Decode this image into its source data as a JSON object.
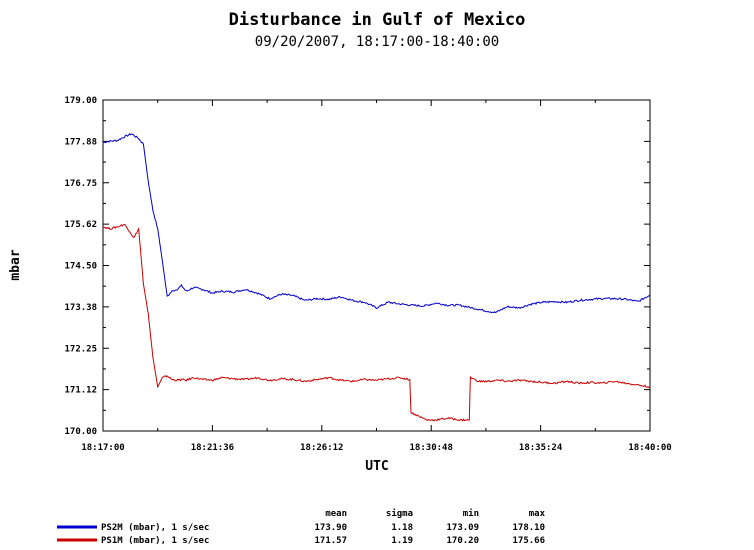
{
  "chart_data": {
    "type": "line",
    "title": "Disturbance in Gulf of Mexico",
    "subtitle": "09/20/2007, 18:17:00-18:40:00",
    "xlabel": "UTC",
    "ylabel": "mbar",
    "x_tick_labels": [
      "18:17:00",
      "18:21:36",
      "18:26:12",
      "18:30:48",
      "18:35:24",
      "18:40:00"
    ],
    "x_range_minutes": [
      0,
      23
    ],
    "y_ticks": [
      "179.00",
      "177.88",
      "176.75",
      "175.62",
      "174.50",
      "173.38",
      "172.25",
      "171.12",
      "170.00"
    ],
    "ylim": [
      170.0,
      179.0
    ],
    "grid": false,
    "legend_position": "bottom",
    "stats_headers": [
      "mean",
      "sigma",
      "min",
      "max"
    ],
    "series": [
      {
        "name": "PS2M (mbar), 1 s/sec",
        "color": "#0000cc",
        "stats": [
          "173.90",
          "1.18",
          "173.09",
          "178.10"
        ],
        "x": [
          0,
          0.3,
          0.6,
          0.9,
          1.2,
          1.5,
          1.7,
          1.9,
          2.1,
          2.3,
          2.5,
          2.7,
          2.9,
          3.1,
          3.3,
          3.5,
          3.8,
          4.2,
          4.6,
          5,
          5.5,
          6,
          6.5,
          7,
          7.5,
          8,
          8.5,
          9,
          9.5,
          10,
          10.5,
          11,
          11.5,
          12,
          12.5,
          13,
          13.5,
          14,
          14.5,
          15,
          15.5,
          16,
          16.5,
          17,
          17.5,
          18,
          18.5,
          19,
          19.5,
          20,
          20.5,
          21,
          21.5,
          22,
          22.5,
          23
        ],
        "y": [
          177.85,
          177.88,
          177.9,
          178.0,
          178.08,
          177.95,
          177.8,
          176.8,
          176.0,
          175.5,
          174.6,
          173.65,
          173.8,
          173.85,
          173.95,
          173.8,
          173.9,
          173.85,
          173.75,
          173.8,
          173.78,
          173.85,
          173.75,
          173.6,
          173.72,
          173.68,
          173.55,
          173.6,
          173.58,
          173.65,
          173.55,
          173.5,
          173.35,
          173.5,
          173.45,
          173.42,
          173.4,
          173.48,
          173.42,
          173.42,
          173.35,
          173.28,
          173.22,
          173.38,
          173.35,
          173.45,
          173.5,
          173.52,
          173.5,
          173.55,
          173.58,
          173.6,
          173.6,
          173.58,
          173.52,
          173.7
        ]
      },
      {
        "name": "PS1M (mbar), 1 s/sec",
        "color": "#cc0000",
        "stats": [
          "171.57",
          "1.19",
          "170.20",
          "175.66"
        ],
        "x": [
          0,
          0.3,
          0.6,
          0.9,
          1.1,
          1.3,
          1.5,
          1.7,
          1.9,
          2.1,
          2.3,
          2.5,
          2.7,
          2.9,
          3.1,
          3.3,
          3.5,
          3.8,
          4.2,
          4.6,
          5,
          5.5,
          6,
          6.5,
          7,
          7.5,
          8,
          8.5,
          9,
          9.5,
          10,
          10.5,
          11,
          11.5,
          12,
          12.5,
          12.9,
          12.95,
          13.3,
          13.6,
          14,
          14.5,
          15,
          15.4,
          15.45,
          15.8,
          16.2,
          16.6,
          17,
          17.5,
          18,
          18.5,
          19,
          19.5,
          20,
          20.5,
          21,
          21.5,
          22,
          22.5,
          23
        ],
        "y": [
          175.55,
          175.5,
          175.55,
          175.62,
          175.45,
          175.25,
          175.5,
          174.0,
          173.2,
          172.0,
          171.2,
          171.45,
          171.5,
          171.4,
          171.38,
          171.4,
          171.38,
          171.45,
          171.4,
          171.38,
          171.45,
          171.42,
          171.4,
          171.45,
          171.38,
          171.42,
          171.4,
          171.35,
          171.4,
          171.45,
          171.38,
          171.35,
          171.4,
          171.38,
          171.42,
          171.45,
          171.4,
          170.5,
          170.4,
          170.3,
          170.3,
          170.35,
          170.3,
          170.3,
          171.45,
          171.35,
          171.35,
          171.38,
          171.35,
          171.38,
          171.35,
          171.32,
          171.3,
          171.35,
          171.3,
          171.32,
          171.3,
          171.35,
          171.3,
          171.25,
          171.2
        ]
      }
    ]
  }
}
